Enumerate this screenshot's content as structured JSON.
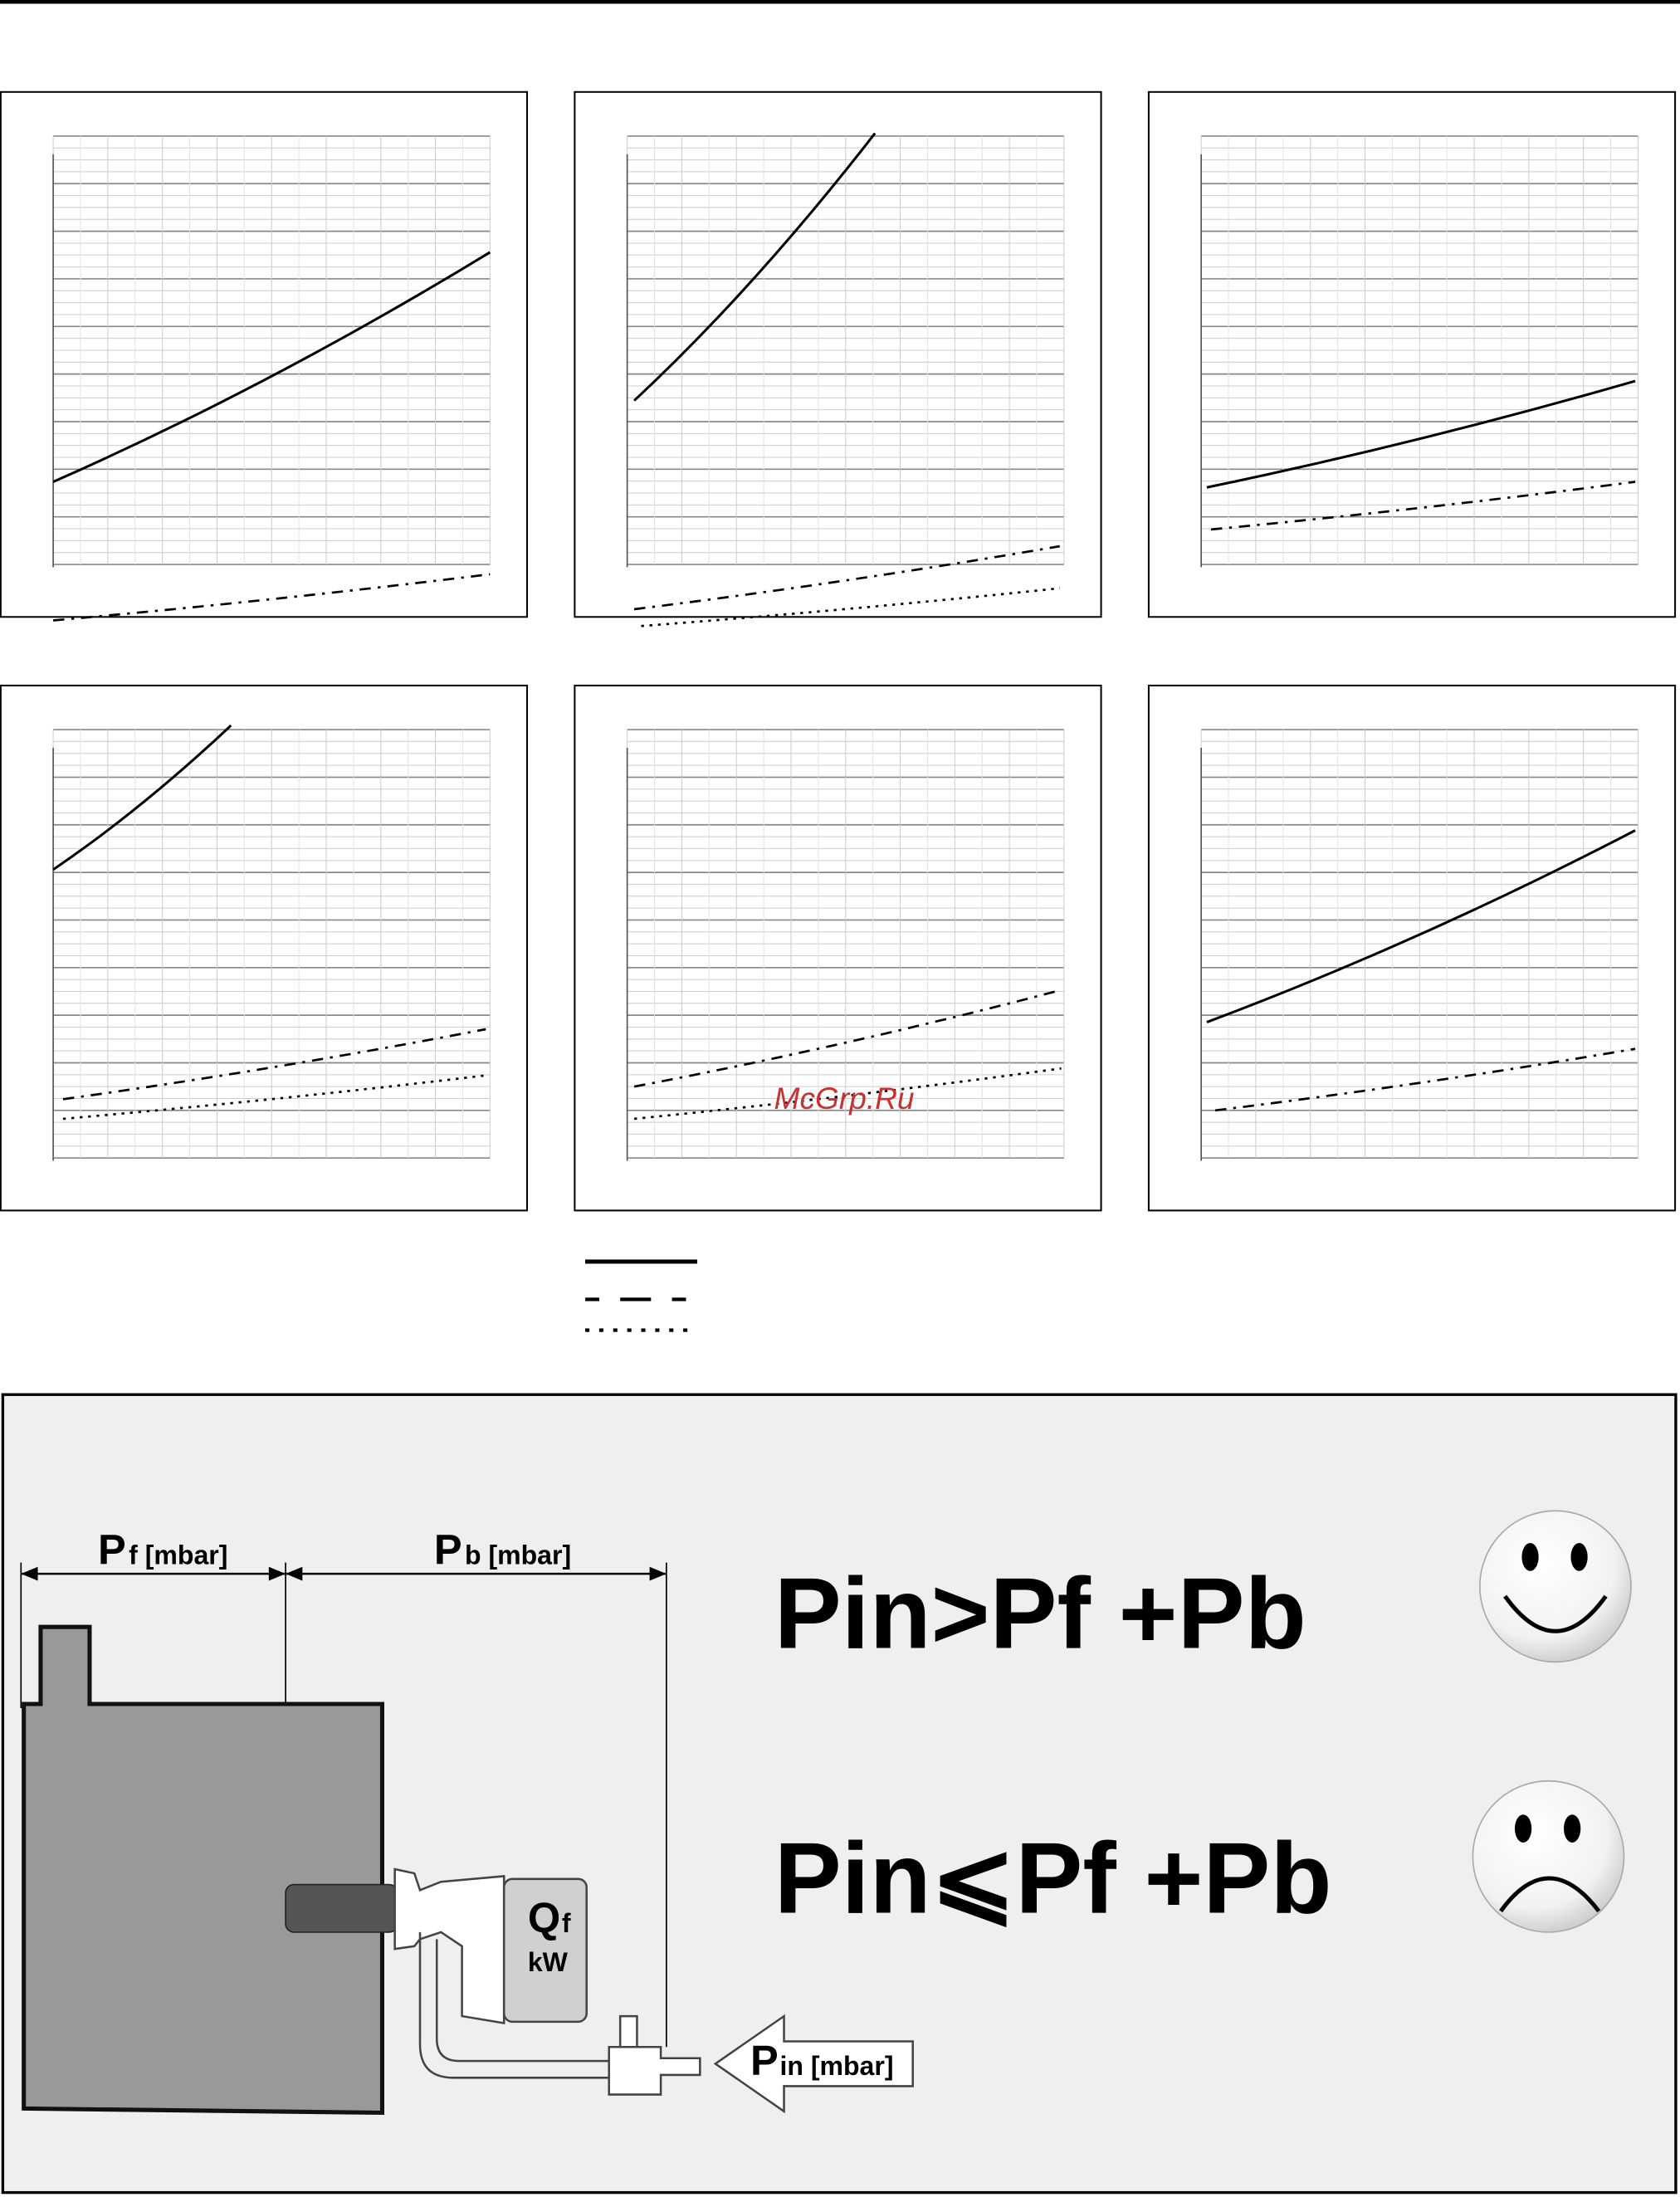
{
  "watermark": "McGrp.Ru",
  "diagram": {
    "pf_label": {
      "main": "P",
      "sub": "f [mbar]"
    },
    "pb_label": {
      "main": "P",
      "sub": "b [mbar]"
    },
    "condition_ok": "Pin>Pf +Pb",
    "condition_bad": "Pin⩽Pf +Pb",
    "qf": {
      "main": "Q",
      "sub": "f",
      "unit": "kW"
    },
    "pin_label": {
      "main": "P",
      "sub": "in [mbar]"
    }
  }
}
